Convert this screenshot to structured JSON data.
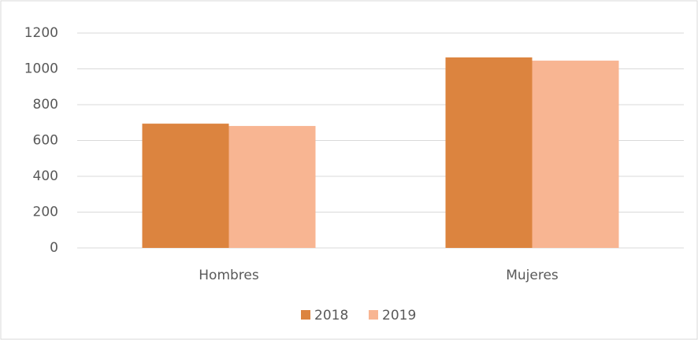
{
  "chart_data": {
    "type": "bar",
    "categories": [
      "Hombres",
      "Mujeres"
    ],
    "series": [
      {
        "name": "2018",
        "color": "#dc843f",
        "values": [
          694,
          1064
        ]
      },
      {
        "name": "2019",
        "color": "#f8b592",
        "values": [
          681,
          1046
        ]
      }
    ],
    "ylim": [
      0,
      1200
    ],
    "yticks": [
      0,
      200,
      400,
      600,
      800,
      1000,
      1200
    ],
    "grid": true,
    "legend": "bottom"
  }
}
